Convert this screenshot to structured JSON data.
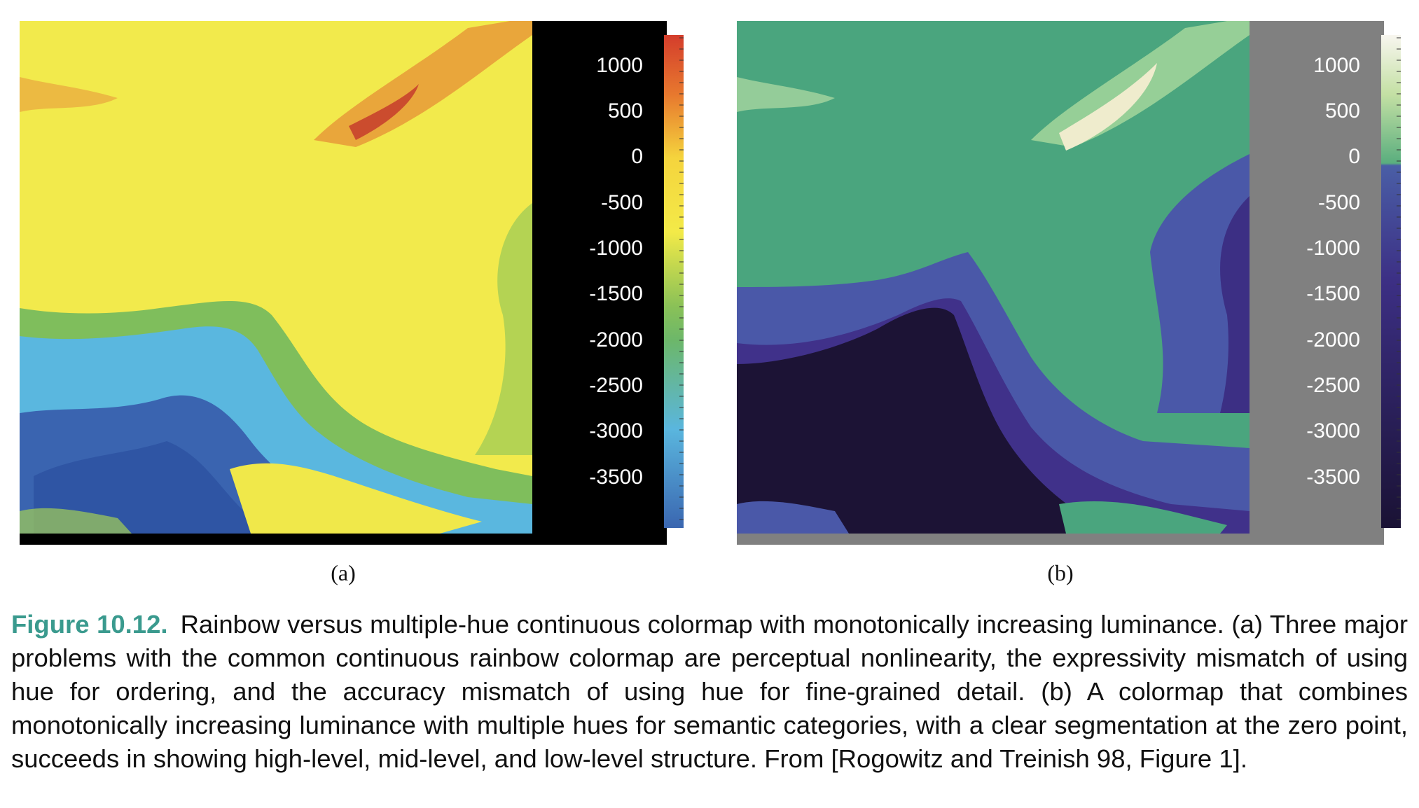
{
  "panel_a": {
    "scheme": "rainbow",
    "colorbar_stops": [
      "#d43d2c",
      "#e7782e",
      "#f5d43d",
      "#f3ea48",
      "#8ac157",
      "#6cb76a",
      "#5ab6de",
      "#3a66b0"
    ],
    "colors": {
      "land": "#f2ea4c",
      "coast": "#86c45c",
      "shelf": "#5ab7df",
      "deep": "#3a64b0",
      "highland": "#c8432d",
      "frame": "#000000"
    },
    "tick_labels": [
      "1000",
      "500",
      "0",
      "-500",
      "-1000",
      "-1500",
      "-2000",
      "-2500",
      "-3000",
      "-3500"
    ],
    "subcaption": "(a)"
  },
  "panel_b": {
    "scheme": "multiple-hue monotonic luminance",
    "colorbar_stops": [
      "#f8f6ef",
      "#c4e0a4",
      "#5aae7e",
      "#4a5ea6",
      "#3c2f84",
      "#1a1234"
    ],
    "colors": {
      "land": "#4aa57e",
      "coast": "#4a58a8",
      "shelf": "#40318a",
      "deep": "#1c1335",
      "highland": "#efeccd",
      "frame": "#808080"
    },
    "tick_labels": [
      "1000",
      "500",
      "0",
      "-500",
      "-1000",
      "-1500",
      "-2000",
      "-2500",
      "-3000",
      "-3500"
    ],
    "subcaption": "(b)"
  },
  "caption": {
    "label": "Figure 10.12.",
    "text": "Rainbow versus multiple-hue continuous colormap with monotonically increasing luminance. (a) Three major problems with the common continuous rainbow colormap are perceptual nonlinearity, the expressivity mismatch of using hue for ordering, and the accuracy mismatch of using hue for fine-grained detail.  (b) A colormap that combines monotonically increasing luminance with multiple hues for semantic categories, with a clear segmentation at the zero point, succeeds in showing high-level, mid-level, and low-level structure. From [Rogowitz and Treinish 98, Figure 1]."
  }
}
